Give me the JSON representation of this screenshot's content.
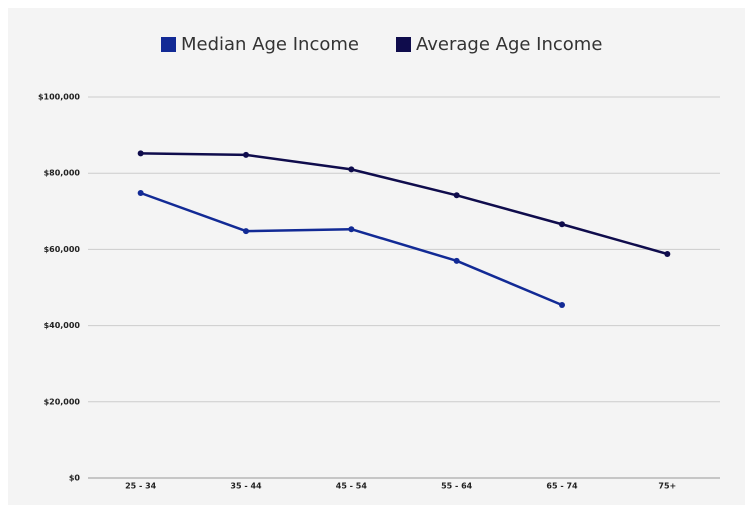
{
  "chart_data": {
    "type": "line",
    "categories": [
      "25 - 34",
      "35 - 44",
      "45 - 54",
      "55 - 64",
      "65 - 74",
      "75+"
    ],
    "series": [
      {
        "name": "Median Age Income",
        "color": "#122a95",
        "values": [
          74800,
          64800,
          65300,
          57000,
          45400,
          null
        ]
      },
      {
        "name": "Average Age Income",
        "color": "#0f0c4c",
        "values": [
          85200,
          84800,
          81000,
          74200,
          66600,
          58800
        ]
      }
    ],
    "ylim": [
      0,
      100000
    ],
    "yticks": [
      {
        "value": 0,
        "label": "$0"
      },
      {
        "value": 20000,
        "label": "$20,000"
      },
      {
        "value": 40000,
        "label": "$40,000"
      },
      {
        "value": 60000,
        "label": "$60,000"
      },
      {
        "value": 80000,
        "label": "$80,000"
      },
      {
        "value": 100000,
        "label": "$100,000"
      }
    ],
    "grid": true,
    "legend": "top"
  }
}
